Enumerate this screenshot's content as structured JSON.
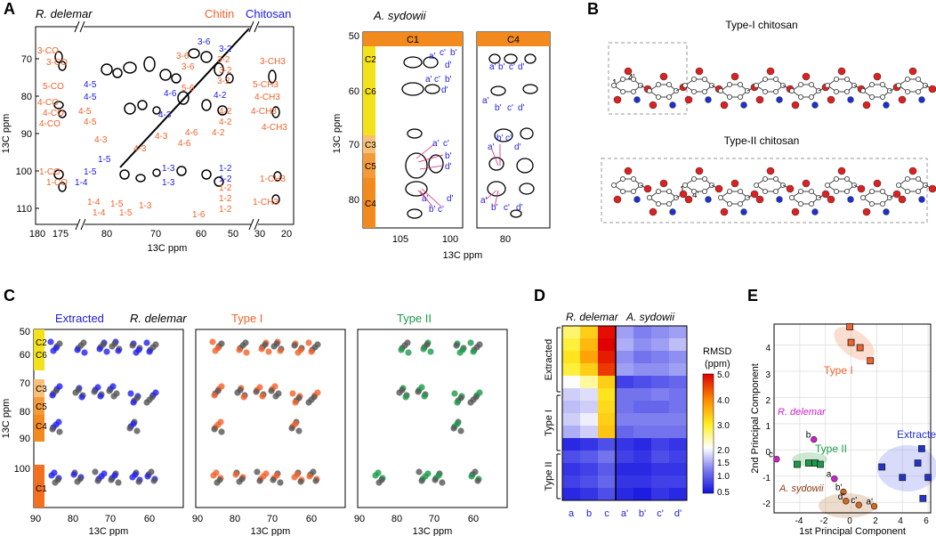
{
  "panels": {
    "A": {
      "label": "A",
      "left": {
        "sample": "R. delemar",
        "legend_chitin": "Chitin",
        "legend_chitosan": "Chitosan",
        "xlabel": "13C ppm",
        "ylabel": "13C ppm",
        "xticks_left": [
          "180",
          "175"
        ],
        "xticks_mid": [
          "80",
          "70",
          "60",
          "50"
        ],
        "xticks_right": [
          "30",
          "20"
        ],
        "yticks": [
          "70",
          "80",
          "90",
          "100",
          "110"
        ],
        "orange_labels": [
          "3-CO",
          "3-CO",
          "5-CO",
          "4-CO",
          "4-CO",
          "4-CO",
          "1-CO",
          "1-CO",
          "4-5",
          "4-5",
          "4-3",
          "4-3",
          "4-3",
          "4-6",
          "4-6",
          "4-2",
          "4-2",
          "4-2",
          "3-6",
          "3-6",
          "3-2",
          "3-2",
          "3-2",
          "5-6",
          "3-CH3",
          "5-CH3",
          "4-CH3",
          "4-CH3",
          "4-CH3",
          "1-4",
          "1-4",
          "1-5",
          "1-5",
          "1-3",
          "1-6",
          "1-2",
          "1-2",
          "1-2",
          "1-CH3",
          "1-CH3"
        ],
        "blue_labels": [
          "3-6",
          "3-2",
          "4-5",
          "4-5",
          "4-6",
          "4-3",
          "4-2",
          "1-5",
          "1-5",
          "1-4",
          "1-3",
          "1-3",
          "1-2",
          "1-2"
        ]
      },
      "right": {
        "sample": "A. sydowii",
        "box_c1": "C1",
        "box_c4": "C4",
        "xlabel": "13C ppm",
        "ylabel": "13C ppm",
        "xticks_c1": [
          "105",
          "100"
        ],
        "xticks_c4": [
          "80"
        ],
        "yticks": [
          "50",
          "60",
          "70",
          "80"
        ],
        "strip_labels": [
          "C2",
          "C6",
          "C3",
          "C5",
          "C4"
        ],
        "peak_labels": [
          "a'",
          "b'",
          "c'",
          "d'"
        ]
      }
    },
    "B": {
      "label": "B",
      "title1": "Type-I chitosan",
      "title2": "Type-II chitosan",
      "atom_labels": [
        "1",
        "4'"
      ]
    },
    "C": {
      "label": "C",
      "legend": [
        "Extracted",
        "R. delemar",
        "Type I",
        "Type II"
      ],
      "legend_colors": [
        "#1a1ae6",
        "#000000",
        "#f2622a",
        "#1a9b48"
      ],
      "xticks": [
        "90",
        "80",
        "70",
        "60"
      ],
      "yticks": [
        "50",
        "60",
        "70",
        "80",
        "90",
        "100"
      ],
      "strip_labels": [
        "C2",
        "C6",
        "C3",
        "C5",
        "C4",
        "C1"
      ],
      "xlabel": "13C ppm",
      "ylabel": "13C ppm"
    },
    "D": {
      "label": "D",
      "col_header_left": "R. delemar",
      "col_header_right": "A. sydowii",
      "row_groups": [
        "Extracted",
        "Type I",
        "Type II"
      ],
      "xticks": [
        "a",
        "b",
        "c",
        "a'",
        "b'",
        "c'",
        "d'"
      ],
      "colorbar_title1": "RMSD",
      "colorbar_title2": "(ppm)",
      "colorbar_ticks": [
        "5.0",
        "4.0",
        "3.0",
        "2.0",
        "1.5",
        "1.0",
        "0.5"
      ],
      "colorbar_range": [
        0.5,
        5.0
      ],
      "grid_values": [
        [
          2.8,
          3.4,
          4.9,
          1.6,
          1.4,
          1.5,
          1.6
        ],
        [
          3.0,
          3.6,
          5.0,
          1.7,
          1.5,
          1.6,
          1.8
        ],
        [
          3.2,
          3.8,
          4.8,
          1.5,
          1.3,
          1.4,
          1.5
        ],
        [
          3.0,
          3.4,
          4.6,
          1.6,
          1.5,
          1.5,
          1.6
        ],
        [
          2.2,
          2.6,
          3.4,
          0.9,
          1.0,
          1.1,
          1.2
        ],
        [
          1.9,
          2.0,
          3.2,
          1.3,
          1.3,
          1.4,
          1.3
        ],
        [
          1.8,
          1.9,
          3.3,
          1.3,
          1.2,
          1.2,
          1.3
        ],
        [
          1.9,
          2.1,
          3.4,
          1.4,
          1.4,
          1.4,
          1.4
        ],
        [
          1.7,
          1.9,
          3.5,
          1.2,
          1.3,
          1.3,
          1.3
        ],
        [
          0.7,
          0.8,
          1.0,
          0.8,
          0.7,
          0.9,
          0.8
        ],
        [
          1.0,
          1.1,
          1.3,
          0.9,
          0.8,
          1.0,
          0.9
        ],
        [
          0.8,
          0.9,
          1.1,
          0.7,
          0.7,
          0.8,
          0.8
        ],
        [
          0.9,
          1.0,
          1.2,
          0.8,
          0.8,
          0.9,
          0.9
        ],
        [
          0.7,
          0.8,
          1.0,
          0.7,
          0.6,
          0.8,
          0.7
        ]
      ]
    },
    "E": {
      "label": "E",
      "xlabel": "1st Principal Component",
      "ylabel": "2nd Principal Component",
      "xticks": [
        "-4",
        "-2",
        "0",
        "2",
        "4",
        "6"
      ],
      "yticks": [
        "4",
        "3",
        "2",
        "1",
        "0",
        "-1",
        "-2"
      ],
      "group_labels": {
        "type1": "Type I",
        "rdel": "R. delemar",
        "type2": "Type II",
        "extracted": "Extracted",
        "asyd": "A. sydowii"
      },
      "point_labels": [
        "b",
        "c",
        "a",
        "b'",
        "d'",
        "c'",
        "a'"
      ],
      "colors": {
        "type1": "#f2622a",
        "type2": "#1a9b48",
        "extracted": "#2233cc",
        "rdel": "#cc22cc",
        "asyd": "#d2691e"
      }
    }
  },
  "chart_data": [
    {
      "type": "heatmap",
      "title": "RMSD (ppm)",
      "x": [
        "a",
        "b",
        "c",
        "a'",
        "b'",
        "c'",
        "d'"
      ],
      "row_groups": [
        "Extracted",
        "Type I",
        "Type II"
      ],
      "range": [
        0.5,
        5.0
      ]
    },
    {
      "type": "scatter",
      "xlabel": "1st Principal Component",
      "ylabel": "2nd Principal Component",
      "xlim": [
        -6,
        6.2
      ],
      "ylim": [
        -2.4,
        4.8
      ],
      "series": [
        {
          "name": "Type I",
          "x": [
            -0.1,
            0.0,
            0.7,
            1.5
          ],
          "y": [
            4.7,
            4.1,
            3.9,
            3.4
          ]
        },
        {
          "name": "Type II",
          "x": [
            -4.2,
            -3.3,
            -2.8,
            -2.4
          ],
          "y": [
            -0.55,
            -0.5,
            -0.5,
            -0.55
          ]
        },
        {
          "name": "Extracted",
          "x": [
            2.4,
            4.0,
            5.2,
            5.5,
            6.0,
            5.6
          ],
          "y": [
            -0.65,
            -1.05,
            -0.5,
            0.05,
            -1.05,
            -1.85
          ]
        },
        {
          "name": "R. delemar",
          "labels": [
            "b",
            "c",
            "a"
          ],
          "x": [
            -2.9,
            -5.8,
            -1.3
          ],
          "y": [
            0.4,
            -0.35,
            -1.1
          ]
        },
        {
          "name": "A. sydowii",
          "labels": [
            "b'",
            "d'",
            "c'",
            "a'"
          ],
          "x": [
            -0.6,
            -0.4,
            0.6,
            1.8
          ],
          "y": [
            -1.6,
            -1.95,
            -2.1,
            -2.15
          ]
        }
      ]
    }
  ]
}
